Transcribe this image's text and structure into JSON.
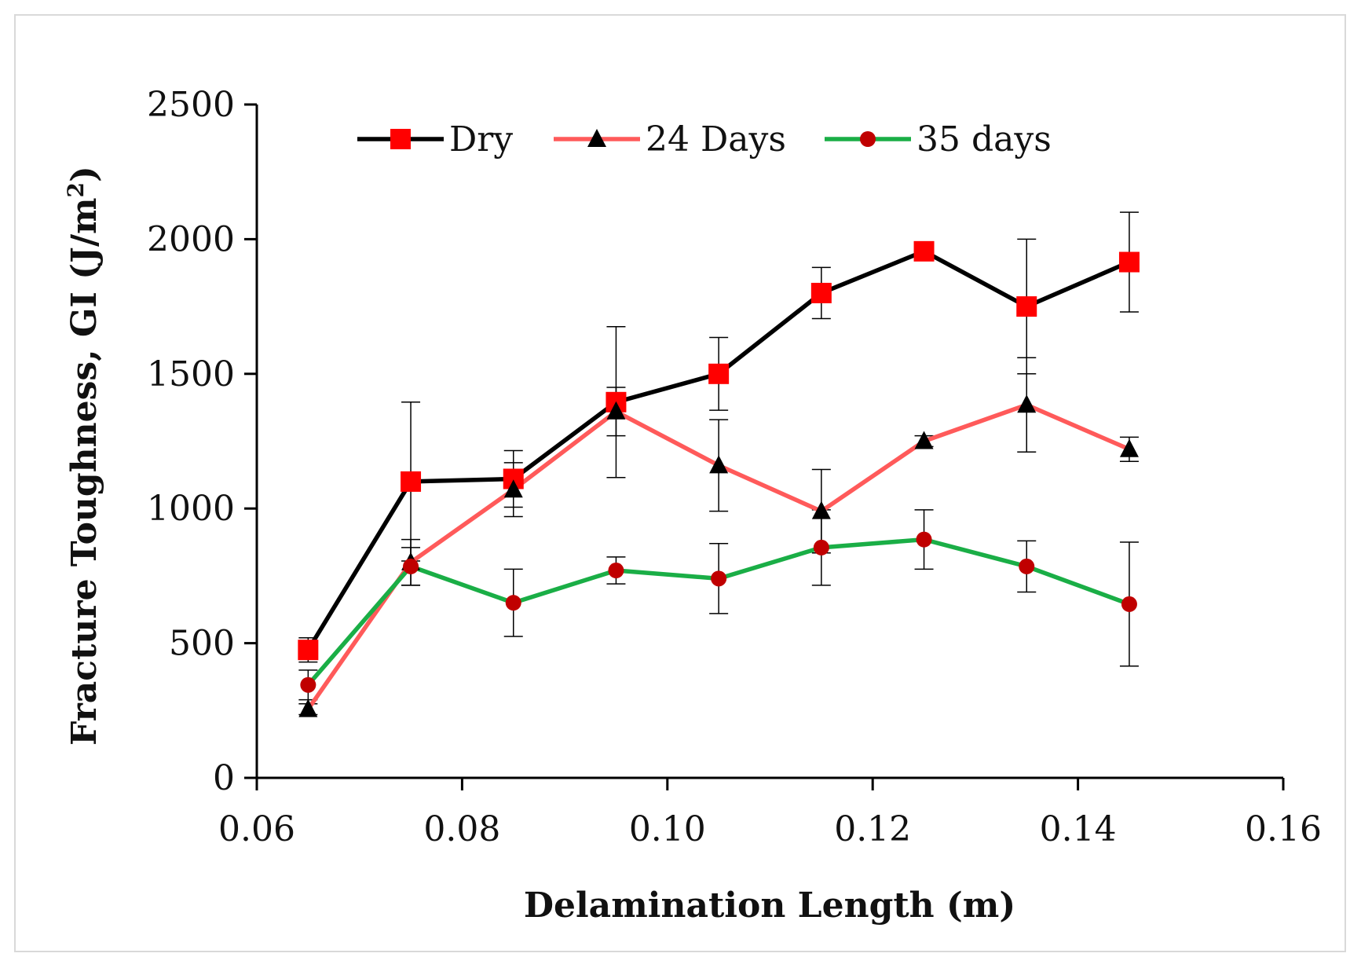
{
  "chart_data": {
    "type": "line",
    "title": "",
    "xlabel": "Delamination Length (m)",
    "ylabel_main": "Fracture Toughness, GI (J/m",
    "ylabel_sup": "2",
    "ylabel_close": ")",
    "xlim": [
      0.06,
      0.16
    ],
    "ylim": [
      0,
      2500
    ],
    "x_ticks": [
      0.06,
      0.08,
      0.1,
      0.12,
      0.14,
      0.16
    ],
    "x_tick_labels": [
      "0.06",
      "0.08",
      "0.10",
      "0.12",
      "0.14",
      "0.16"
    ],
    "y_ticks": [
      0,
      500,
      1000,
      1500,
      2000,
      2500
    ],
    "y_tick_labels": [
      "0",
      "500",
      "1000",
      "1500",
      "2000",
      "2500"
    ],
    "grid": false,
    "legend_position": "top",
    "series": [
      {
        "name": "Dry",
        "line_color": "#000000",
        "marker": "square",
        "marker_color": "#ff0000",
        "x": [
          0.065,
          0.075,
          0.085,
          0.095,
          0.105,
          0.115,
          0.125,
          0.135,
          0.145
        ],
        "y": [
          475,
          1100,
          1110,
          1395,
          1500,
          1800,
          1955,
          1750,
          1915
        ],
        "err": [
          45,
          295,
          105,
          280,
          135,
          95,
          0,
          250,
          185
        ]
      },
      {
        "name": "24 Days",
        "line_color": "#ff5a5a",
        "marker": "triangle",
        "marker_color": "#000000",
        "x": [
          0.065,
          0.075,
          0.085,
          0.095,
          0.105,
          0.115,
          0.125,
          0.135,
          0.145
        ],
        "y": [
          255,
          800,
          1070,
          1360,
          1160,
          990,
          1250,
          1385,
          1220
        ],
        "err": [
          20,
          85,
          100,
          90,
          170,
          155,
          20,
          175,
          45
        ]
      },
      {
        "name": "35 days",
        "line_color": "#1aae46",
        "marker": "circle",
        "marker_color": "#c00000",
        "x": [
          0.065,
          0.075,
          0.085,
          0.095,
          0.105,
          0.115,
          0.125,
          0.135,
          0.145
        ],
        "y": [
          345,
          785,
          650,
          770,
          740,
          855,
          885,
          785,
          645
        ],
        "err": [
          55,
          70,
          125,
          50,
          130,
          140,
          110,
          95,
          230
        ]
      }
    ]
  }
}
